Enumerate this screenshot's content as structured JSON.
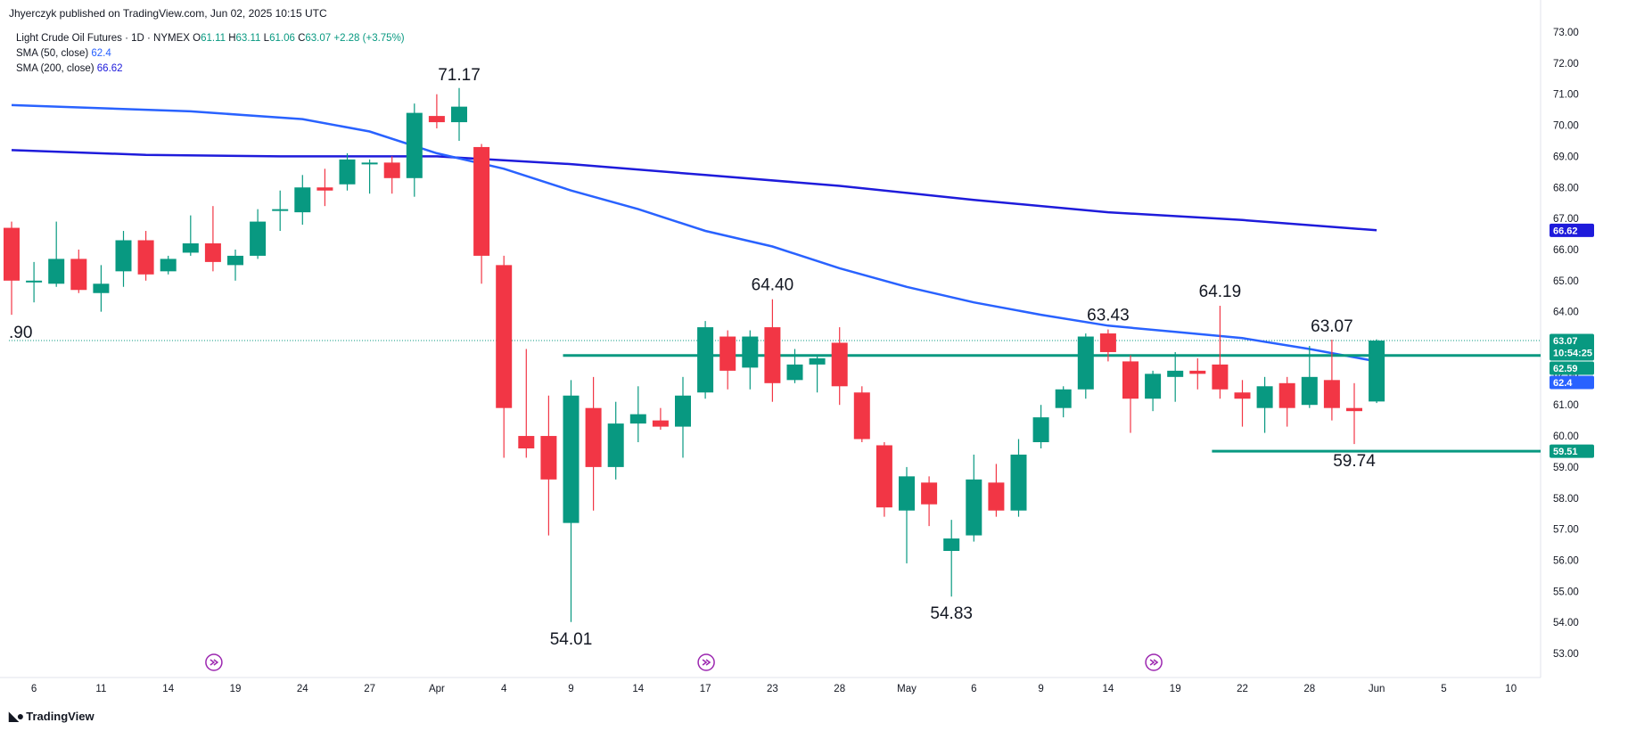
{
  "header": {
    "publish_line": "Jhyerczyk published on TradingView.com, Jun 02, 2025 10:15 UTC"
  },
  "legend": {
    "symbol": "Light Crude Oil Futures · 1D · NYMEX",
    "ohlc": [
      {
        "label": "O",
        "value": "61.11"
      },
      {
        "label": "H",
        "value": "63.11"
      },
      {
        "label": "L",
        "value": "61.06"
      },
      {
        "label": "C",
        "value": "63.07"
      }
    ],
    "change": "+2.28 (+3.75%)",
    "sma50_label": "SMA (50, close)",
    "sma50_value": "62.4",
    "sma200_label": "SMA (200, close)",
    "sma200_value": "66.62"
  },
  "footer": {
    "brand": "TradingView"
  },
  "colors": {
    "up": "#089981",
    "down": "#f23645",
    "sma50": "#2962ff",
    "sma200": "#1e1bdb",
    "level": "#089981"
  },
  "chart_data": {
    "type": "candlestick",
    "symbol": "Light Crude Oil Futures",
    "interval": "1D",
    "exchange": "NYMEX",
    "ylim": [
      52.5,
      73.3
    ],
    "y_ticks": [
      "73.00",
      "72.00",
      "71.00",
      "70.00",
      "69.00",
      "68.00",
      "67.00",
      "66.00",
      "65.00",
      "64.00",
      "63.00",
      "62.00",
      "61.00",
      "60.00",
      "59.00",
      "58.00",
      "57.00",
      "56.00",
      "55.00",
      "54.00",
      "53.00"
    ],
    "x_ticks": [
      {
        "label": "6",
        "bar": 1
      },
      {
        "label": "11",
        "bar": 4
      },
      {
        "label": "14",
        "bar": 7
      },
      {
        "label": "19",
        "bar": 10
      },
      {
        "label": "24",
        "bar": 13
      },
      {
        "label": "27",
        "bar": 16
      },
      {
        "label": "Apr",
        "bar": 19
      },
      {
        "label": "4",
        "bar": 22
      },
      {
        "label": "9",
        "bar": 25
      },
      {
        "label": "14",
        "bar": 28
      },
      {
        "label": "17",
        "bar": 31
      },
      {
        "label": "23",
        "bar": 34
      },
      {
        "label": "28",
        "bar": 37
      },
      {
        "label": "May",
        "bar": 40
      },
      {
        "label": "6",
        "bar": 43
      },
      {
        "label": "9",
        "bar": 46
      },
      {
        "label": "14",
        "bar": 49
      },
      {
        "label": "19",
        "bar": 52
      },
      {
        "label": "22",
        "bar": 55
      },
      {
        "label": "28",
        "bar": 58
      },
      {
        "label": "Jun",
        "bar": 61
      },
      {
        "label": "5",
        "bar": 64
      },
      {
        "label": "10",
        "bar": 67
      }
    ],
    "candles": [
      {
        "o": 66.7,
        "h": 66.9,
        "l": 63.9,
        "c": 65.0
      },
      {
        "o": 65.0,
        "h": 65.6,
        "l": 64.3,
        "c": 65.0
      },
      {
        "o": 64.9,
        "h": 66.9,
        "l": 64.8,
        "c": 65.7
      },
      {
        "o": 65.7,
        "h": 66.0,
        "l": 64.6,
        "c": 64.7
      },
      {
        "o": 64.6,
        "h": 65.5,
        "l": 64.0,
        "c": 64.9
      },
      {
        "o": 65.3,
        "h": 66.6,
        "l": 64.8,
        "c": 66.3
      },
      {
        "o": 66.3,
        "h": 66.6,
        "l": 65.0,
        "c": 65.2
      },
      {
        "o": 65.3,
        "h": 65.8,
        "l": 65.2,
        "c": 65.7
      },
      {
        "o": 65.9,
        "h": 67.1,
        "l": 65.8,
        "c": 66.2
      },
      {
        "o": 66.2,
        "h": 67.4,
        "l": 65.3,
        "c": 65.6
      },
      {
        "o": 65.5,
        "h": 66.0,
        "l": 65.0,
        "c": 65.8
      },
      {
        "o": 65.8,
        "h": 67.3,
        "l": 65.7,
        "c": 66.9
      },
      {
        "o": 67.3,
        "h": 67.9,
        "l": 66.6,
        "c": 67.3
      },
      {
        "o": 67.2,
        "h": 68.4,
        "l": 66.8,
        "c": 68.0
      },
      {
        "o": 68.0,
        "h": 68.6,
        "l": 67.4,
        "c": 67.9
      },
      {
        "o": 68.1,
        "h": 69.1,
        "l": 67.9,
        "c": 68.9
      },
      {
        "o": 68.8,
        "h": 68.9,
        "l": 67.8,
        "c": 68.8
      },
      {
        "o": 68.8,
        "h": 69.0,
        "l": 67.8,
        "c": 68.3
      },
      {
        "o": 68.3,
        "h": 70.7,
        "l": 67.7,
        "c": 70.4
      },
      {
        "o": 70.3,
        "h": 71.0,
        "l": 69.9,
        "c": 70.1
      },
      {
        "o": 70.1,
        "h": 71.2,
        "l": 69.5,
        "c": 70.6
      },
      {
        "o": 69.3,
        "h": 69.4,
        "l": 64.9,
        "c": 65.8
      },
      {
        "o": 65.5,
        "h": 65.8,
        "l": 59.3,
        "c": 60.9
      },
      {
        "o": 60.0,
        "h": 62.8,
        "l": 59.3,
        "c": 59.6
      },
      {
        "o": 60.0,
        "h": 61.3,
        "l": 56.8,
        "c": 58.6
      },
      {
        "o": 57.2,
        "h": 61.8,
        "l": 54.01,
        "c": 61.3
      },
      {
        "o": 60.9,
        "h": 61.9,
        "l": 57.6,
        "c": 59.0
      },
      {
        "o": 59.0,
        "h": 61.1,
        "l": 58.6,
        "c": 60.4
      },
      {
        "o": 60.4,
        "h": 61.6,
        "l": 59.8,
        "c": 60.7
      },
      {
        "o": 60.5,
        "h": 60.9,
        "l": 60.2,
        "c": 60.3
      },
      {
        "o": 60.3,
        "h": 61.9,
        "l": 59.3,
        "c": 61.3
      },
      {
        "o": 61.4,
        "h": 63.7,
        "l": 61.2,
        "c": 63.5
      },
      {
        "o": 63.2,
        "h": 63.4,
        "l": 61.5,
        "c": 62.1
      },
      {
        "o": 62.2,
        "h": 63.4,
        "l": 61.5,
        "c": 63.2
      },
      {
        "o": 63.5,
        "h": 64.4,
        "l": 61.1,
        "c": 61.7
      },
      {
        "o": 61.8,
        "h": 62.8,
        "l": 61.7,
        "c": 62.3
      },
      {
        "o": 62.3,
        "h": 62.6,
        "l": 61.4,
        "c": 62.5
      },
      {
        "o": 63.0,
        "h": 63.5,
        "l": 61.0,
        "c": 61.6
      },
      {
        "o": 61.4,
        "h": 61.6,
        "l": 59.8,
        "c": 59.9
      },
      {
        "o": 59.7,
        "h": 59.8,
        "l": 57.4,
        "c": 57.7
      },
      {
        "o": 57.6,
        "h": 59.0,
        "l": 55.9,
        "c": 58.7
      },
      {
        "o": 58.5,
        "h": 58.7,
        "l": 57.1,
        "c": 57.8
      },
      {
        "o": 56.3,
        "h": 57.3,
        "l": 54.83,
        "c": 56.7
      },
      {
        "o": 56.8,
        "h": 59.4,
        "l": 56.6,
        "c": 58.6
      },
      {
        "o": 58.5,
        "h": 59.1,
        "l": 57.4,
        "c": 57.6
      },
      {
        "o": 57.6,
        "h": 59.9,
        "l": 57.4,
        "c": 59.4
      },
      {
        "o": 59.8,
        "h": 61.0,
        "l": 59.6,
        "c": 60.6
      },
      {
        "o": 60.9,
        "h": 61.6,
        "l": 60.6,
        "c": 61.5
      },
      {
        "o": 61.5,
        "h": 63.3,
        "l": 61.2,
        "c": 63.2
      },
      {
        "o": 63.3,
        "h": 63.43,
        "l": 62.4,
        "c": 62.7
      },
      {
        "o": 62.4,
        "h": 62.6,
        "l": 60.1,
        "c": 61.2
      },
      {
        "o": 61.2,
        "h": 62.1,
        "l": 60.8,
        "c": 62.0
      },
      {
        "o": 61.9,
        "h": 62.7,
        "l": 61.1,
        "c": 62.1
      },
      {
        "o": 62.1,
        "h": 62.5,
        "l": 61.5,
        "c": 62.0
      },
      {
        "o": 62.3,
        "h": 64.19,
        "l": 61.2,
        "c": 61.5
      },
      {
        "o": 61.4,
        "h": 61.8,
        "l": 60.3,
        "c": 61.2
      },
      {
        "o": 60.9,
        "h": 61.9,
        "l": 60.1,
        "c": 61.6
      },
      {
        "o": 61.7,
        "h": 61.9,
        "l": 60.3,
        "c": 60.9
      },
      {
        "o": 61.0,
        "h": 62.9,
        "l": 60.9,
        "c": 61.9
      },
      {
        "o": 61.8,
        "h": 63.1,
        "l": 60.5,
        "c": 60.9
      },
      {
        "o": 60.9,
        "h": 61.7,
        "l": 59.74,
        "c": 60.8
      },
      {
        "o": 61.11,
        "h": 63.11,
        "l": 61.06,
        "c": 63.07
      }
    ],
    "sma50": [
      [
        0,
        70.65
      ],
      [
        8,
        70.45
      ],
      [
        13,
        70.2
      ],
      [
        16,
        69.8
      ],
      [
        19,
        69.1
      ],
      [
        22,
        68.6
      ],
      [
        25,
        67.9
      ],
      [
        28,
        67.3
      ],
      [
        31,
        66.6
      ],
      [
        34,
        66.1
      ],
      [
        37,
        65.4
      ],
      [
        40,
        64.8
      ],
      [
        43,
        64.3
      ],
      [
        46,
        63.9
      ],
      [
        49,
        63.55
      ],
      [
        52,
        63.35
      ],
      [
        55,
        63.15
      ],
      [
        58,
        62.8
      ],
      [
        61,
        62.4
      ]
    ],
    "sma200": [
      [
        0,
        69.2
      ],
      [
        6,
        69.05
      ],
      [
        12,
        69.0
      ],
      [
        19,
        69.0
      ],
      [
        25,
        68.75
      ],
      [
        31,
        68.4
      ],
      [
        37,
        68.05
      ],
      [
        43,
        67.6
      ],
      [
        49,
        67.2
      ],
      [
        55,
        66.95
      ],
      [
        61,
        66.62
      ]
    ],
    "levels": [
      {
        "value": 62.59,
        "from_bar": 25,
        "label": "62.59"
      },
      {
        "value": 59.51,
        "from_bar": 54,
        "label": "59.51"
      }
    ],
    "annotations": [
      {
        "text": "71.17",
        "bar": 20,
        "value": 71.17,
        "pos": "above"
      },
      {
        "text": "54.01",
        "bar": 25,
        "value": 54.01,
        "pos": "below"
      },
      {
        "text": "64.40",
        "bar": 34,
        "value": 64.4,
        "pos": "above"
      },
      {
        "text": "54.83",
        "bar": 42,
        "value": 54.83,
        "pos": "below"
      },
      {
        "text": "63.43",
        "bar": 49,
        "value": 63.43,
        "pos": "above"
      },
      {
        "text": "64.19",
        "bar": 54,
        "value": 64.19,
        "pos": "above"
      },
      {
        "text": "63.07",
        "bar": 59,
        "value": 63.07,
        "pos": "above"
      },
      {
        "text": "59.74",
        "bar": 60,
        "value": 59.74,
        "pos": "below"
      }
    ],
    "left_edge_label": ".90",
    "price_tags": [
      {
        "value": 66.62,
        "label": "66.62",
        "color": "#1e1bdb"
      },
      {
        "value": 63.07,
        "label": "63.07",
        "color": "#089981",
        "countdown": "10:54:25"
      },
      {
        "value": 62.59,
        "label": "62.59",
        "color": "#089981"
      },
      {
        "value": 62.4,
        "label": "62.4",
        "color": "#2962ff"
      },
      {
        "value": 59.51,
        "label": "59.51",
        "color": "#089981"
      }
    ],
    "event_markers": [
      {
        "bar": 9
      },
      {
        "bar": 31
      },
      {
        "bar": 51
      }
    ],
    "grid": false
  }
}
